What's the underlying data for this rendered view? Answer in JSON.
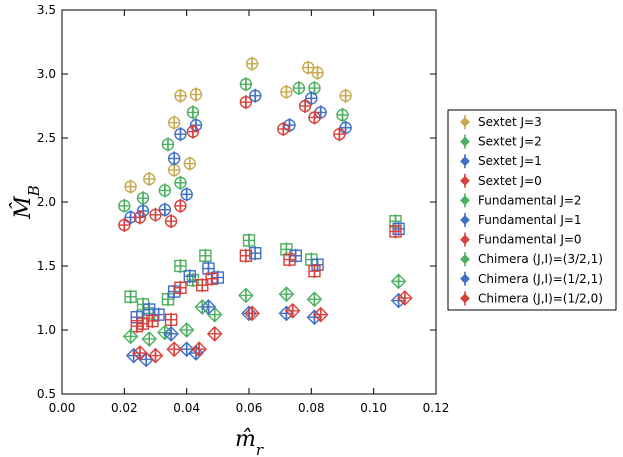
{
  "chart_data": {
    "type": "scatter",
    "title": "",
    "xlabel": "m̂_r",
    "ylabel": "M̂_B",
    "xlim": [
      0.0,
      0.12
    ],
    "ylim": [
      0.5,
      3.5
    ],
    "xticks": [
      "0.00",
      "0.02",
      "0.04",
      "0.06",
      "0.08",
      "0.10",
      "0.12"
    ],
    "yticks": [
      "0.5",
      "1.0",
      "1.5",
      "2.0",
      "2.5",
      "3.0",
      "3.5"
    ],
    "grid": false,
    "legend_position": "right",
    "series": [
      {
        "name": "Sextet J=3",
        "color": "#c8a951",
        "marker": "circle-plus",
        "points": [
          [
            0.022,
            2.12
          ],
          [
            0.028,
            2.18
          ],
          [
            0.036,
            2.62
          ],
          [
            0.036,
            2.25
          ],
          [
            0.038,
            2.83
          ],
          [
            0.041,
            2.3
          ],
          [
            0.043,
            2.84
          ],
          [
            0.061,
            3.08
          ],
          [
            0.072,
            2.86
          ],
          [
            0.079,
            3.05
          ],
          [
            0.082,
            3.01
          ],
          [
            0.091,
            2.83
          ]
        ]
      },
      {
        "name": "Sextet J=2",
        "color": "#4daf60",
        "marker": "circle-plus",
        "points": [
          [
            0.02,
            1.97
          ],
          [
            0.026,
            2.03
          ],
          [
            0.033,
            2.09
          ],
          [
            0.034,
            2.45
          ],
          [
            0.038,
            2.15
          ],
          [
            0.042,
            2.7
          ],
          [
            0.059,
            2.92
          ],
          [
            0.076,
            2.89
          ],
          [
            0.081,
            2.89
          ],
          [
            0.09,
            2.68
          ]
        ]
      },
      {
        "name": "Sextet J=1",
        "color": "#3f6fc6",
        "marker": "circle-plus",
        "points": [
          [
            0.022,
            1.88
          ],
          [
            0.026,
            1.93
          ],
          [
            0.033,
            1.94
          ],
          [
            0.036,
            2.34
          ],
          [
            0.038,
            2.53
          ],
          [
            0.04,
            2.06
          ],
          [
            0.043,
            2.6
          ],
          [
            0.062,
            2.83
          ],
          [
            0.073,
            2.6
          ],
          [
            0.08,
            2.81
          ],
          [
            0.083,
            2.7
          ],
          [
            0.091,
            2.58
          ]
        ]
      },
      {
        "name": "Sextet J=0",
        "color": "#d9403a",
        "marker": "circle-plus",
        "points": [
          [
            0.02,
            1.82
          ],
          [
            0.025,
            1.88
          ],
          [
            0.03,
            1.9
          ],
          [
            0.035,
            1.85
          ],
          [
            0.038,
            1.97
          ],
          [
            0.042,
            2.55
          ],
          [
            0.059,
            2.78
          ],
          [
            0.071,
            2.57
          ],
          [
            0.078,
            2.75
          ],
          [
            0.081,
            2.66
          ],
          [
            0.089,
            2.53
          ]
        ]
      },
      {
        "name": "Fundamental J=2",
        "color": "#4daf60",
        "marker": "square-plus",
        "points": [
          [
            0.022,
            1.26
          ],
          [
            0.026,
            1.2
          ],
          [
            0.028,
            1.13
          ],
          [
            0.034,
            1.24
          ],
          [
            0.038,
            1.5
          ],
          [
            0.042,
            1.39
          ],
          [
            0.046,
            1.58
          ],
          [
            0.06,
            1.7
          ],
          [
            0.072,
            1.63
          ],
          [
            0.08,
            1.55
          ],
          [
            0.107,
            1.85
          ]
        ]
      },
      {
        "name": "Fundamental J=1",
        "color": "#3f6fc6",
        "marker": "square-plus",
        "points": [
          [
            0.024,
            1.1
          ],
          [
            0.028,
            1.16
          ],
          [
            0.031,
            1.12
          ],
          [
            0.036,
            1.3
          ],
          [
            0.041,
            1.42
          ],
          [
            0.047,
            1.48
          ],
          [
            0.05,
            1.41
          ],
          [
            0.062,
            1.6
          ],
          [
            0.075,
            1.58
          ],
          [
            0.082,
            1.51
          ],
          [
            0.108,
            1.79
          ]
        ]
      },
      {
        "name": "Fundamental J=0",
        "color": "#d9403a",
        "marker": "square-plus",
        "points": [
          [
            0.024,
            1.03
          ],
          [
            0.026,
            1.05
          ],
          [
            0.029,
            1.07
          ],
          [
            0.035,
            1.08
          ],
          [
            0.038,
            1.33
          ],
          [
            0.045,
            1.35
          ],
          [
            0.048,
            1.4
          ],
          [
            0.059,
            1.58
          ],
          [
            0.073,
            1.55
          ],
          [
            0.081,
            1.46
          ],
          [
            0.107,
            1.77
          ]
        ]
      },
      {
        "name": "Chimera (J,I)=(3/2,1)",
        "color": "#4daf60",
        "marker": "diamond-plus",
        "points": [
          [
            0.022,
            0.95
          ],
          [
            0.028,
            0.93
          ],
          [
            0.033,
            0.98
          ],
          [
            0.04,
            1.0
          ],
          [
            0.045,
            1.18
          ],
          [
            0.049,
            1.12
          ],
          [
            0.059,
            1.27
          ],
          [
            0.072,
            1.28
          ],
          [
            0.081,
            1.24
          ],
          [
            0.108,
            1.38
          ]
        ]
      },
      {
        "name": "Chimera (J,I)=(1/2,1)",
        "color": "#3f6fc6",
        "marker": "diamond-plus",
        "points": [
          [
            0.023,
            0.8
          ],
          [
            0.027,
            0.77
          ],
          [
            0.035,
            0.97
          ],
          [
            0.04,
            0.85
          ],
          [
            0.043,
            0.82
          ],
          [
            0.047,
            1.18
          ],
          [
            0.06,
            1.13
          ],
          [
            0.072,
            1.13
          ],
          [
            0.081,
            1.1
          ],
          [
            0.108,
            1.23
          ]
        ]
      },
      {
        "name": "Chimera (J,I)=(1/2,0)",
        "color": "#d9403a",
        "marker": "diamond-plus",
        "points": [
          [
            0.025,
            0.82
          ],
          [
            0.03,
            0.8
          ],
          [
            0.036,
            0.85
          ],
          [
            0.044,
            0.85
          ],
          [
            0.049,
            0.97
          ],
          [
            0.061,
            1.13
          ],
          [
            0.074,
            1.15
          ],
          [
            0.083,
            1.12
          ],
          [
            0.11,
            1.25
          ]
        ]
      }
    ]
  }
}
